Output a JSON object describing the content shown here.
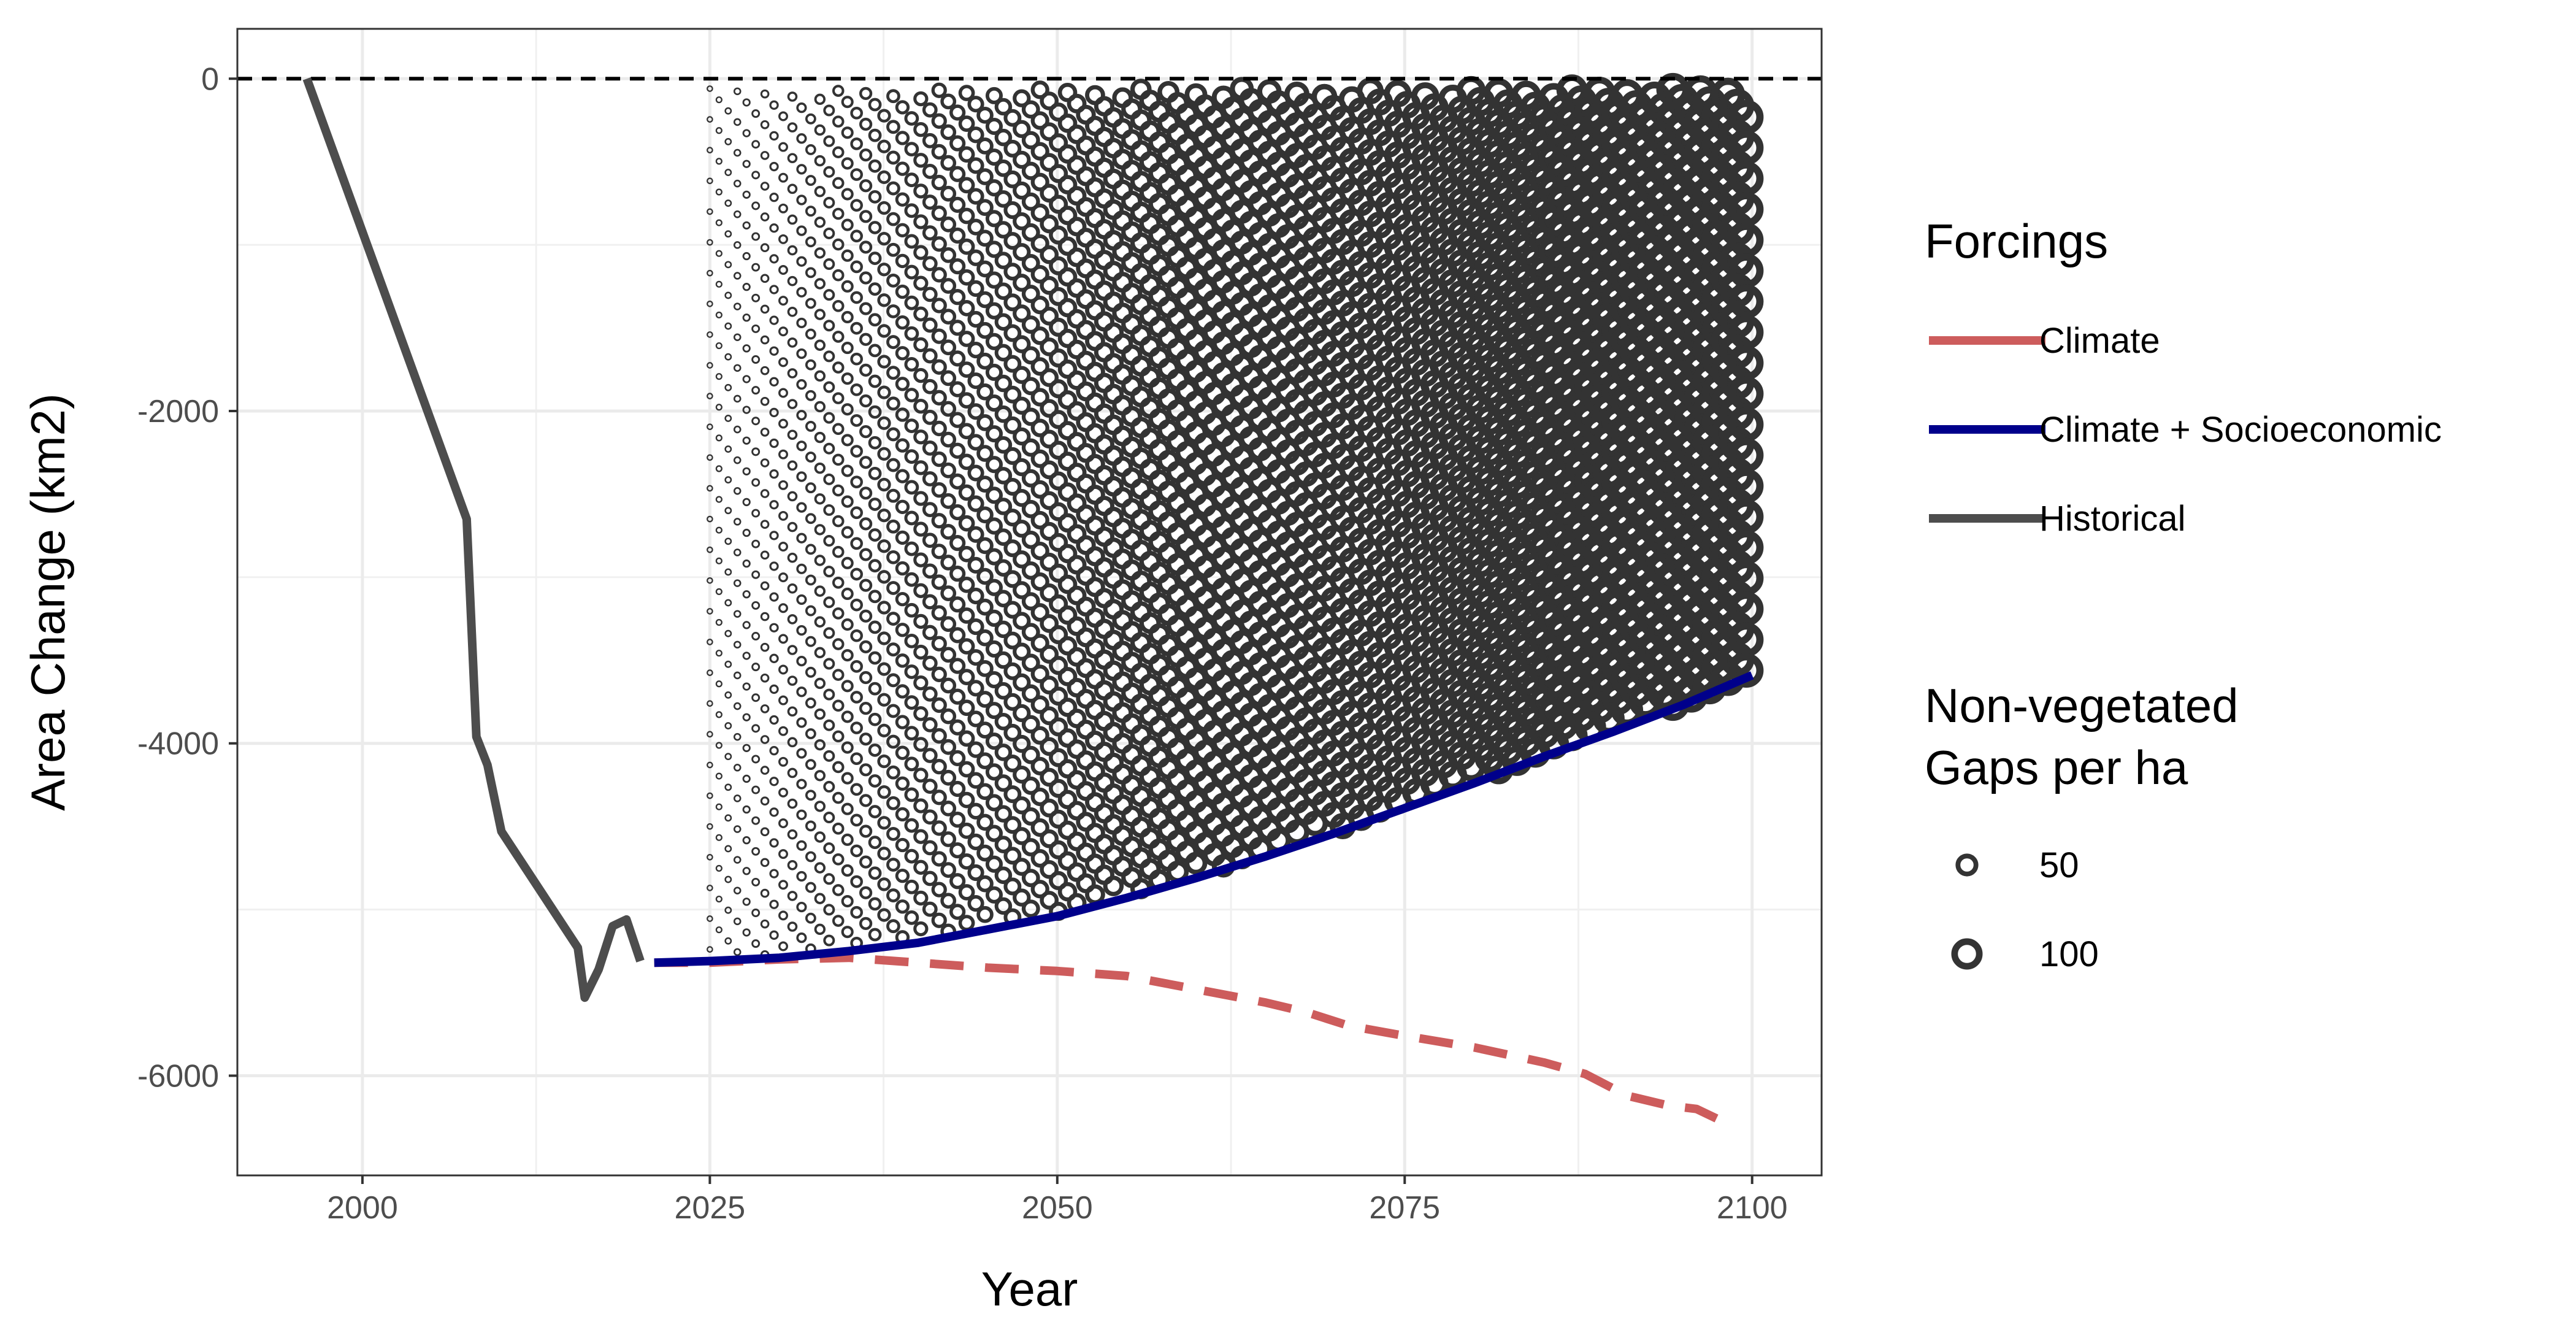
{
  "chart_data": {
    "type": "line",
    "xlabel": "Year",
    "ylabel": "Area Change (km2)",
    "xlim": [
      1991,
      2105
    ],
    "ylim": [
      -6600,
      300
    ],
    "x_ticks": [
      2000,
      2025,
      2050,
      2075,
      2100
    ],
    "x_tick_labels": [
      "2000",
      "2025",
      "2050",
      "2075",
      "2100"
    ],
    "y_ticks": [
      0,
      -2000,
      -4000,
      -6000
    ],
    "y_tick_labels": [
      "0",
      "-2000",
      "-4000",
      "-6000"
    ],
    "reference_line": {
      "y": 0,
      "style": "dashed",
      "color": "#000000"
    },
    "grid": true,
    "series": [
      {
        "name": "Historical",
        "color": "#4d4d4d",
        "style": "solid",
        "points": [
          [
            1996,
            0
          ],
          [
            2007.5,
            -2650
          ],
          [
            2008.2,
            -3960
          ],
          [
            2009,
            -4130
          ],
          [
            2010,
            -4530
          ],
          [
            2015.5,
            -5230
          ],
          [
            2016,
            -5530
          ],
          [
            2017,
            -5360
          ],
          [
            2018,
            -5100
          ],
          [
            2019,
            -5060
          ],
          [
            2020,
            -5310
          ]
        ]
      },
      {
        "name": "Climate",
        "color": "#cd5c5c",
        "style": "dashed",
        "points": [
          [
            2021,
            -5320
          ],
          [
            2025,
            -5320
          ],
          [
            2030,
            -5300
          ],
          [
            2035,
            -5290
          ],
          [
            2040,
            -5320
          ],
          [
            2045,
            -5350
          ],
          [
            2050,
            -5370
          ],
          [
            2055,
            -5400
          ],
          [
            2060,
            -5480
          ],
          [
            2065,
            -5560
          ],
          [
            2068,
            -5620
          ],
          [
            2071,
            -5700
          ],
          [
            2075,
            -5760
          ],
          [
            2080,
            -5830
          ],
          [
            2085,
            -5920
          ],
          [
            2088,
            -5990
          ],
          [
            2091,
            -6120
          ],
          [
            2094,
            -6180
          ],
          [
            2096,
            -6200
          ],
          [
            2098,
            -6280
          ]
        ]
      },
      {
        "name": "Climate + Socioeconomic",
        "color": "#00008b",
        "style": "solid",
        "points": [
          [
            2021,
            -5320
          ],
          [
            2025,
            -5310
          ],
          [
            2030,
            -5290
          ],
          [
            2035,
            -5250
          ],
          [
            2040,
            -5200
          ],
          [
            2045,
            -5120
          ],
          [
            2050,
            -5040
          ],
          [
            2055,
            -4930
          ],
          [
            2060,
            -4810
          ],
          [
            2065,
            -4680
          ],
          [
            2070,
            -4540
          ],
          [
            2075,
            -4390
          ],
          [
            2080,
            -4240
          ],
          [
            2085,
            -4080
          ],
          [
            2090,
            -3930
          ],
          [
            2095,
            -3770
          ],
          [
            2100,
            -3590
          ]
        ]
      }
    ],
    "gap_field": {
      "description_variable": "Non-vegetated Gaps per ha",
      "x_range": [
        2025,
        2100
      ],
      "value_range": [
        2,
        125
      ],
      "color": "#333333"
    },
    "legends": [
      {
        "title": "Forcings",
        "entries": [
          {
            "label": "Climate",
            "color": "#cd5c5c"
          },
          {
            "label": "Climate + Socioeconomic",
            "color": "#00008b"
          },
          {
            "label": "Historical",
            "color": "#4d4d4d"
          }
        ]
      },
      {
        "title_lines": [
          "Non-vegetated",
          "Gaps per ha"
        ],
        "entries": [
          {
            "label": "50",
            "value": 50
          },
          {
            "label": "100",
            "value": 100
          }
        ]
      }
    ]
  }
}
